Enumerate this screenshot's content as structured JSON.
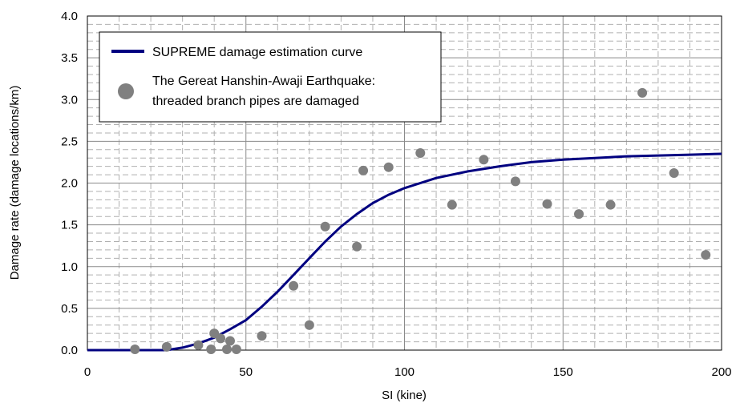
{
  "chart_data": {
    "type": "scatter",
    "xlabel": "SI (kine)",
    "ylabel": "Damage rate (damage locations/km)",
    "xlim": [
      0,
      200
    ],
    "ylim": [
      0,
      4.0
    ],
    "x_ticks": [
      "0",
      "50",
      "100",
      "150",
      "200"
    ],
    "y_ticks": [
      "0.0",
      "0.5",
      "1.0",
      "1.5",
      "2.0",
      "2.5",
      "3.0",
      "3.5",
      "4.0"
    ],
    "grid": true,
    "legend_position": "top-left",
    "series": [
      {
        "name": "SUPREME damage estimation curve",
        "kind": "line",
        "color": "#000080",
        "x": [
          0,
          25,
          30,
          35,
          40,
          45,
          50,
          55,
          60,
          65,
          70,
          75,
          80,
          85,
          90,
          95,
          100,
          110,
          120,
          130,
          140,
          150,
          160,
          170,
          180,
          190,
          200
        ],
        "y": [
          0,
          0,
          0.03,
          0.08,
          0.15,
          0.25,
          0.36,
          0.52,
          0.7,
          0.9,
          1.1,
          1.3,
          1.48,
          1.63,
          1.76,
          1.86,
          1.94,
          2.06,
          2.14,
          2.2,
          2.25,
          2.28,
          2.3,
          2.32,
          2.33,
          2.34,
          2.35
        ]
      },
      {
        "name": "The Gereat Hanshin-Awaji Earthquake: threaded branch pipes are damaged",
        "kind": "scatter",
        "color": "#808080",
        "x": [
          15,
          25,
          35,
          39,
          40,
          42,
          44,
          45,
          47,
          55,
          65,
          70,
          75,
          85,
          87,
          95,
          105,
          115,
          125,
          135,
          145,
          155,
          165,
          175,
          185,
          195
        ],
        "y": [
          0.01,
          0.04,
          0.06,
          0.01,
          0.2,
          0.14,
          0.01,
          0.11,
          0.01,
          0.17,
          0.77,
          0.3,
          1.48,
          1.24,
          2.15,
          2.19,
          2.36,
          1.74,
          2.28,
          2.02,
          1.75,
          1.63,
          1.74,
          3.08,
          2.12,
          1.14
        ]
      }
    ],
    "legend": {
      "line_label": "SUPREME damage estimation curve",
      "scatter_label_1": "The Gereat Hanshin-Awaji Earthquake:",
      "scatter_label_2": "threaded branch pipes are damaged"
    }
  }
}
